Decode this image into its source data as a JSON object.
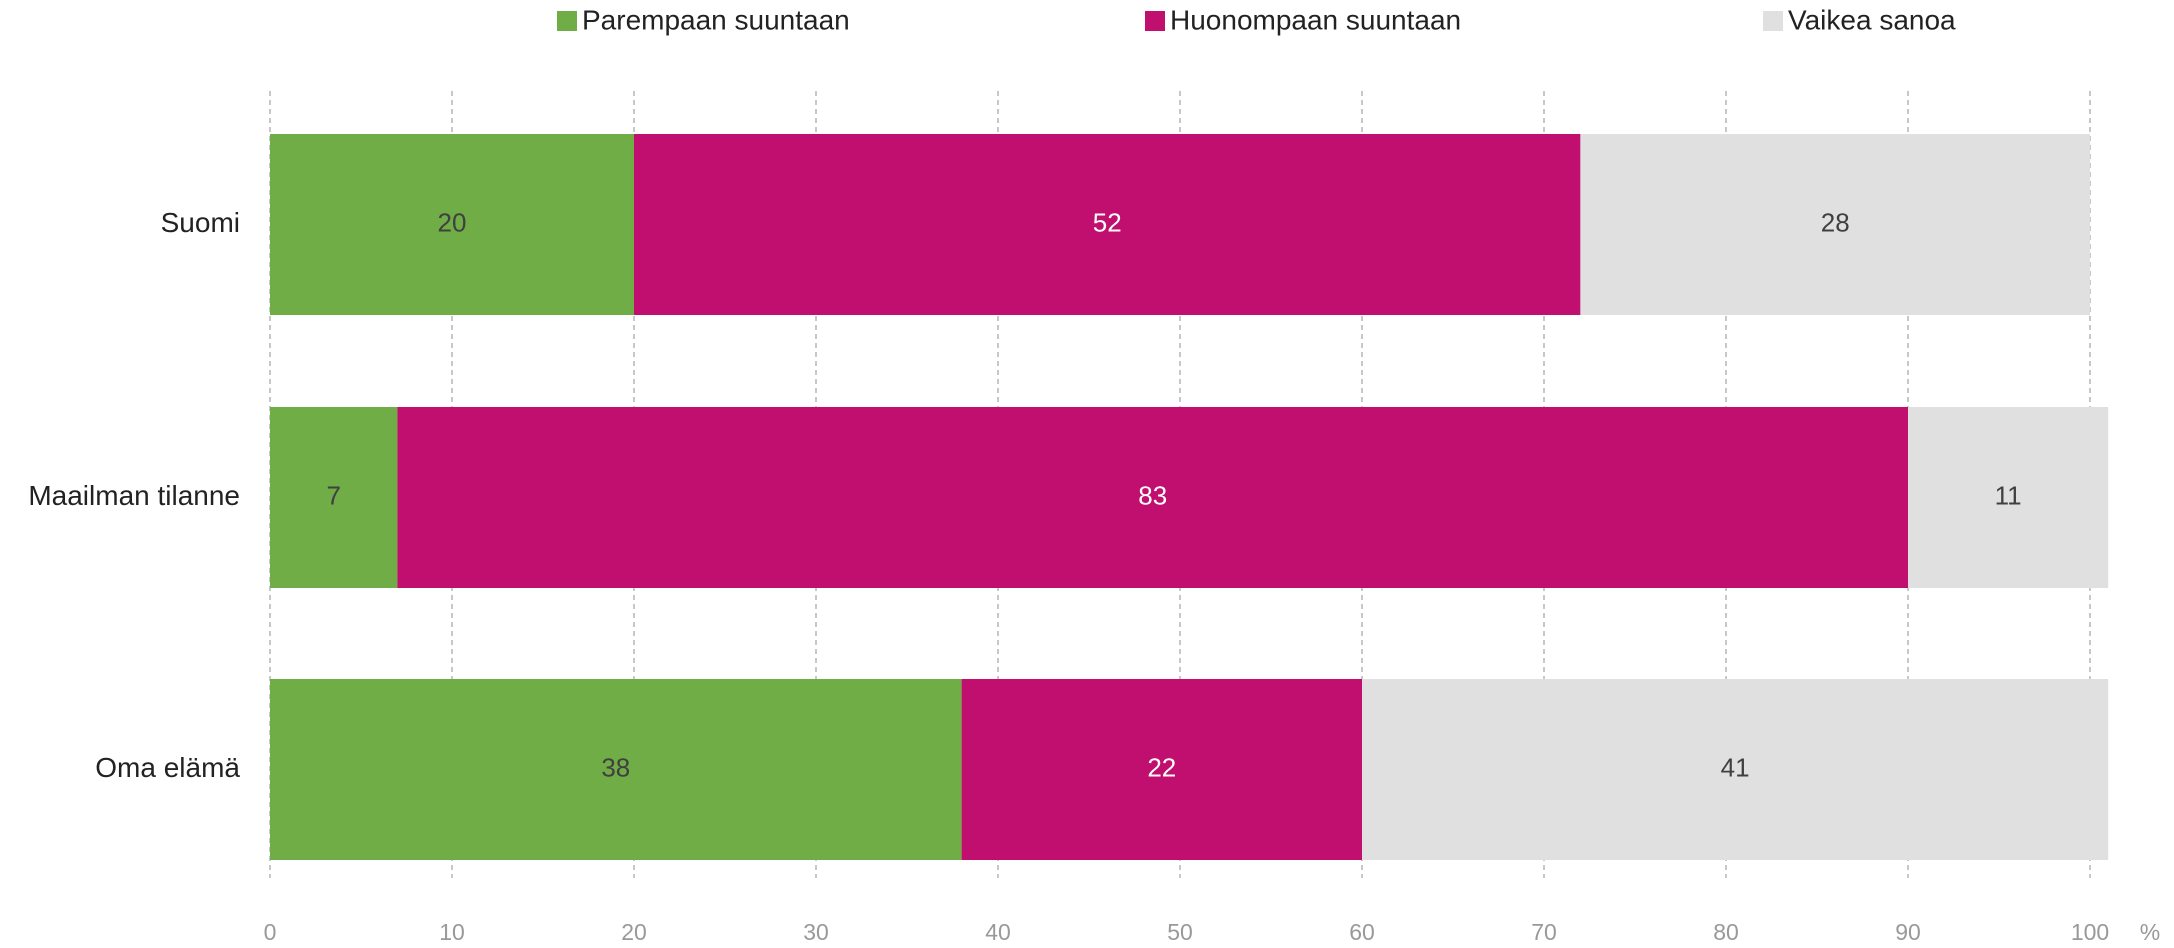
{
  "chart_data": {
    "type": "stacked_barh",
    "categories": [
      "Suomi",
      "Maailman tilanne",
      "Oma elämä"
    ],
    "series": [
      {
        "name": "Parempaan suuntaan",
        "color": "#70ad47",
        "label_color": "#404040",
        "values": [
          20,
          7,
          38
        ]
      },
      {
        "name": "Huonompaan suuntaan",
        "color": "#c00f6e",
        "label_color": "#ffffff",
        "values": [
          52,
          83,
          22
        ]
      },
      {
        "name": "Vaikea sanoa",
        "color": "#e0e0e0",
        "label_color": "#404040",
        "values": [
          28,
          11,
          41
        ]
      }
    ],
    "xlabel": "%",
    "xlim": [
      0,
      100
    ],
    "xticks": [
      0,
      10,
      20,
      30,
      40,
      50,
      60,
      70,
      80,
      90,
      100
    ],
    "grid": true,
    "legend": "top"
  }
}
